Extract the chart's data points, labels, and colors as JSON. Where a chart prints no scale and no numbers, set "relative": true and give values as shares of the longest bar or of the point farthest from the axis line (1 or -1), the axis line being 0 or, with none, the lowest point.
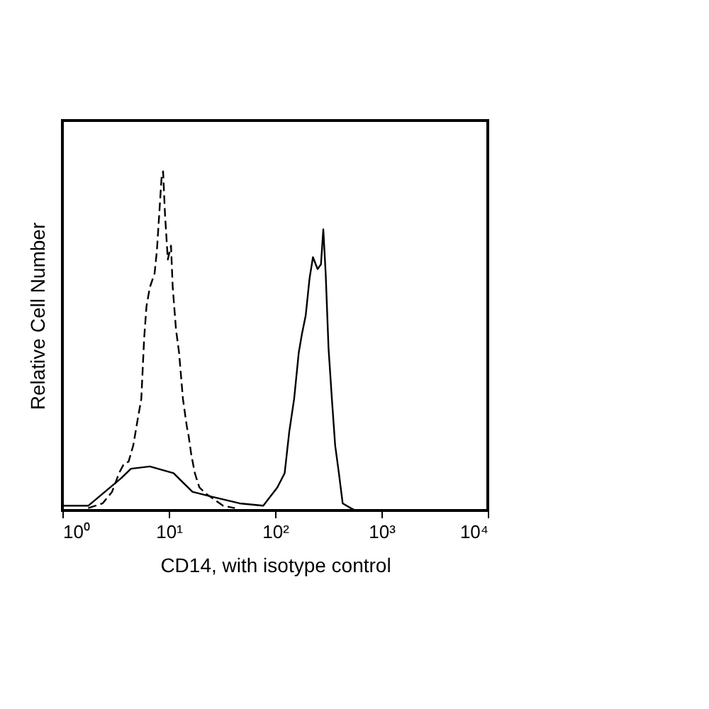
{
  "chart_data": {
    "type": "line",
    "relative": true,
    "log": "x",
    "xlabel": "CD14, with isotype control",
    "ylabel": "Relative Cell Number",
    "xlim": [
      1,
      10000
    ],
    "xticks": [
      {
        "value": 1,
        "label": "10⁰"
      },
      {
        "value": 10,
        "label": "10¹"
      },
      {
        "value": 100,
        "label": "10²"
      },
      {
        "value": 1000,
        "label": "10³"
      },
      {
        "value": 10000,
        "label": "10⁴"
      }
    ],
    "tick_labels": "x",
    "grid": false,
    "marker": "none",
    "series": [
      {
        "color": "#000000",
        "line_style": "dashed",
        "x": [
          1.75,
          2.39,
          2.93,
          3.41,
          3.78,
          4.19,
          4.64,
          5.14,
          5.52,
          5.87,
          6.18,
          6.64,
          7.36,
          7.74,
          8.15,
          8.58,
          8.85,
          9.21,
          9.8,
          10.5,
          10.9,
          11.7,
          12.5,
          13.6,
          14.8,
          15.4,
          16.3,
          17.6,
          19.4,
          22.7,
          26.4,
          32.4,
          41.9
        ],
        "values": [
          0.007,
          0.021,
          0.055,
          0.11,
          0.137,
          0.144,
          0.192,
          0.274,
          0.329,
          0.507,
          0.603,
          0.658,
          0.699,
          0.767,
          0.877,
          0.986,
          1.0,
          0.877,
          0.74,
          0.781,
          0.658,
          0.534,
          0.466,
          0.329,
          0.247,
          0.219,
          0.164,
          0.11,
          0.068,
          0.048,
          0.034,
          0.014,
          0.007
        ]
      },
      {
        "color": "#000000",
        "line_style": "solid",
        "x": [
          1,
          1.75,
          3.59,
          4.41,
          6.64,
          11.1,
          16.7,
          25.1,
          46.4,
          77.4,
          105,
          123,
          136,
          151,
          167,
          179,
          194,
          211,
          227,
          251,
          270,
          284,
          299,
          318,
          342,
          367,
          398,
          432,
          514,
          570
        ],
        "values": [
          0.014,
          0.014,
          0.096,
          0.123,
          0.13,
          0.11,
          0.055,
          0.041,
          0.021,
          0.014,
          0.068,
          0.11,
          0.233,
          0.329,
          0.466,
          0.521,
          0.575,
          0.685,
          0.747,
          0.712,
          0.726,
          0.829,
          0.699,
          0.479,
          0.329,
          0.192,
          0.11,
          0.021,
          0.007,
          0
        ]
      }
    ]
  }
}
